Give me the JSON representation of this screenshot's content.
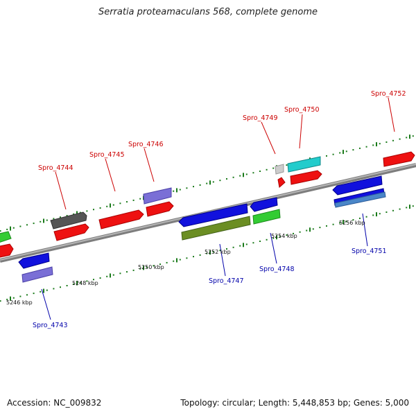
{
  "title": "Serratia proteamaculans 568, complete genome",
  "footer": {
    "accession": "Accession: NC_009832",
    "summary": "Topology: circular; Length: 5,448,853 bp; Genes: 5,000"
  },
  "colors": {
    "forward_label": "#cc0000",
    "reverse_label": "#0000aa",
    "tick": "#1a7a1a",
    "backbone": "#8a8a8a",
    "red": "#ee1111",
    "blue": "#1111dd",
    "lavender": "#7a6fd6",
    "green": "#33cc33",
    "darkgray": "#555555",
    "olive": "#6b8e23",
    "cyan": "#22cccc",
    "lightgray": "#cccccc",
    "steelblue": "#4a86c8"
  },
  "scale_labels": [
    "5246 kbp",
    "5248 kbp",
    "5250 kbp",
    "5252 kbp",
    "5254 kbp",
    "5256 kbp"
  ],
  "gene_labels": [
    {
      "id": "Spro_4743",
      "strand": "reverse"
    },
    {
      "id": "Spro_4744",
      "strand": "forward"
    },
    {
      "id": "Spro_4745",
      "strand": "forward"
    },
    {
      "id": "Spro_4746",
      "strand": "forward"
    },
    {
      "id": "Spro_4747",
      "strand": "reverse"
    },
    {
      "id": "Spro_4748",
      "strand": "reverse"
    },
    {
      "id": "Spro_4749",
      "strand": "forward"
    },
    {
      "id": "Spro_4750",
      "strand": "forward"
    },
    {
      "id": "Spro_4751",
      "strand": "reverse"
    },
    {
      "id": "Spro_4752",
      "strand": "forward"
    }
  ]
}
